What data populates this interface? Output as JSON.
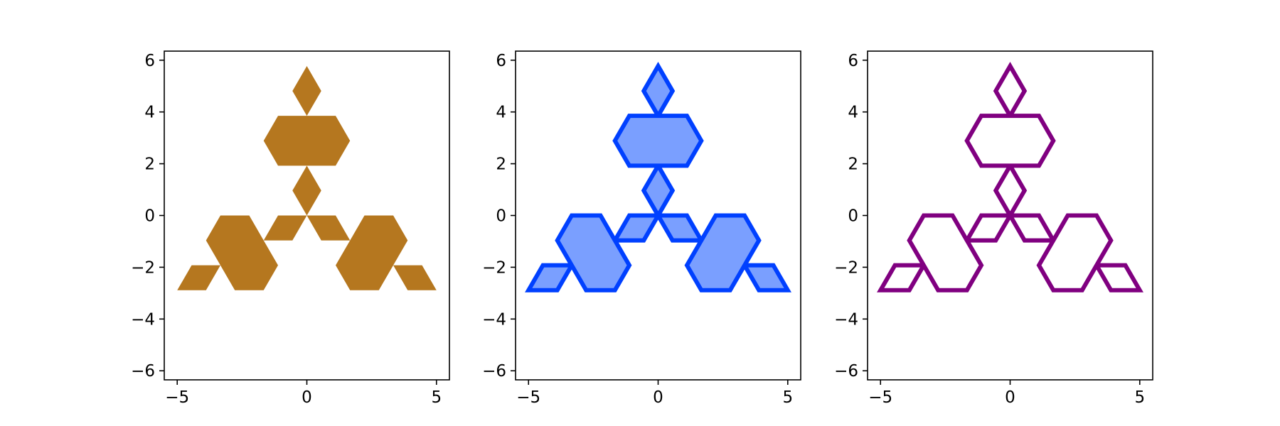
{
  "chart_data": [
    {
      "type": "area",
      "title": "",
      "xlabel": "",
      "ylabel": "",
      "xlim": [
        -5.5,
        5.5
      ],
      "ylim": [
        -6.35,
        6.35
      ],
      "xticks": [
        -5,
        0,
        5
      ],
      "yticks": [
        -6,
        -4,
        -2,
        0,
        2,
        4,
        6
      ],
      "xtick_labels": [
        "−5",
        "0",
        "5"
      ],
      "ytick_labels": [
        "−6",
        "−4",
        "−2",
        "0",
        "2",
        "4",
        "6"
      ],
      "grid": false,
      "series": [
        {
          "shape": "koch-snowflake-order-2",
          "fill": "#b5771f",
          "edge": "none"
        }
      ]
    },
    {
      "type": "area",
      "title": "",
      "xlabel": "",
      "ylabel": "",
      "xlim": [
        -5.5,
        5.5
      ],
      "ylim": [
        -6.35,
        6.35
      ],
      "xticks": [
        -5,
        0,
        5
      ],
      "yticks": [
        -6,
        -4,
        -2,
        0,
        2,
        4,
        6
      ],
      "xtick_labels": [
        "−5",
        "0",
        "5"
      ],
      "ytick_labels": [
        "−6",
        "−4",
        "−2",
        "0",
        "2",
        "4",
        "6"
      ],
      "grid": false,
      "series": [
        {
          "shape": "koch-snowflake-order-2",
          "fill": "#7a9fff",
          "edge": "#0040ff"
        }
      ]
    },
    {
      "type": "line",
      "title": "",
      "xlabel": "",
      "ylabel": "",
      "xlim": [
        -5.5,
        5.5
      ],
      "ylim": [
        -6.35,
        6.35
      ],
      "xticks": [
        -5,
        0,
        5
      ],
      "yticks": [
        -6,
        -4,
        -2,
        0,
        2,
        4,
        6
      ],
      "xtick_labels": [
        "−5",
        "0",
        "5"
      ],
      "ytick_labels": [
        "−6",
        "−4",
        "−2",
        "0",
        "2",
        "4",
        "6"
      ],
      "grid": false,
      "series": [
        {
          "shape": "koch-snowflake-order-2",
          "fill": "none",
          "edge": "#800080"
        }
      ]
    }
  ]
}
